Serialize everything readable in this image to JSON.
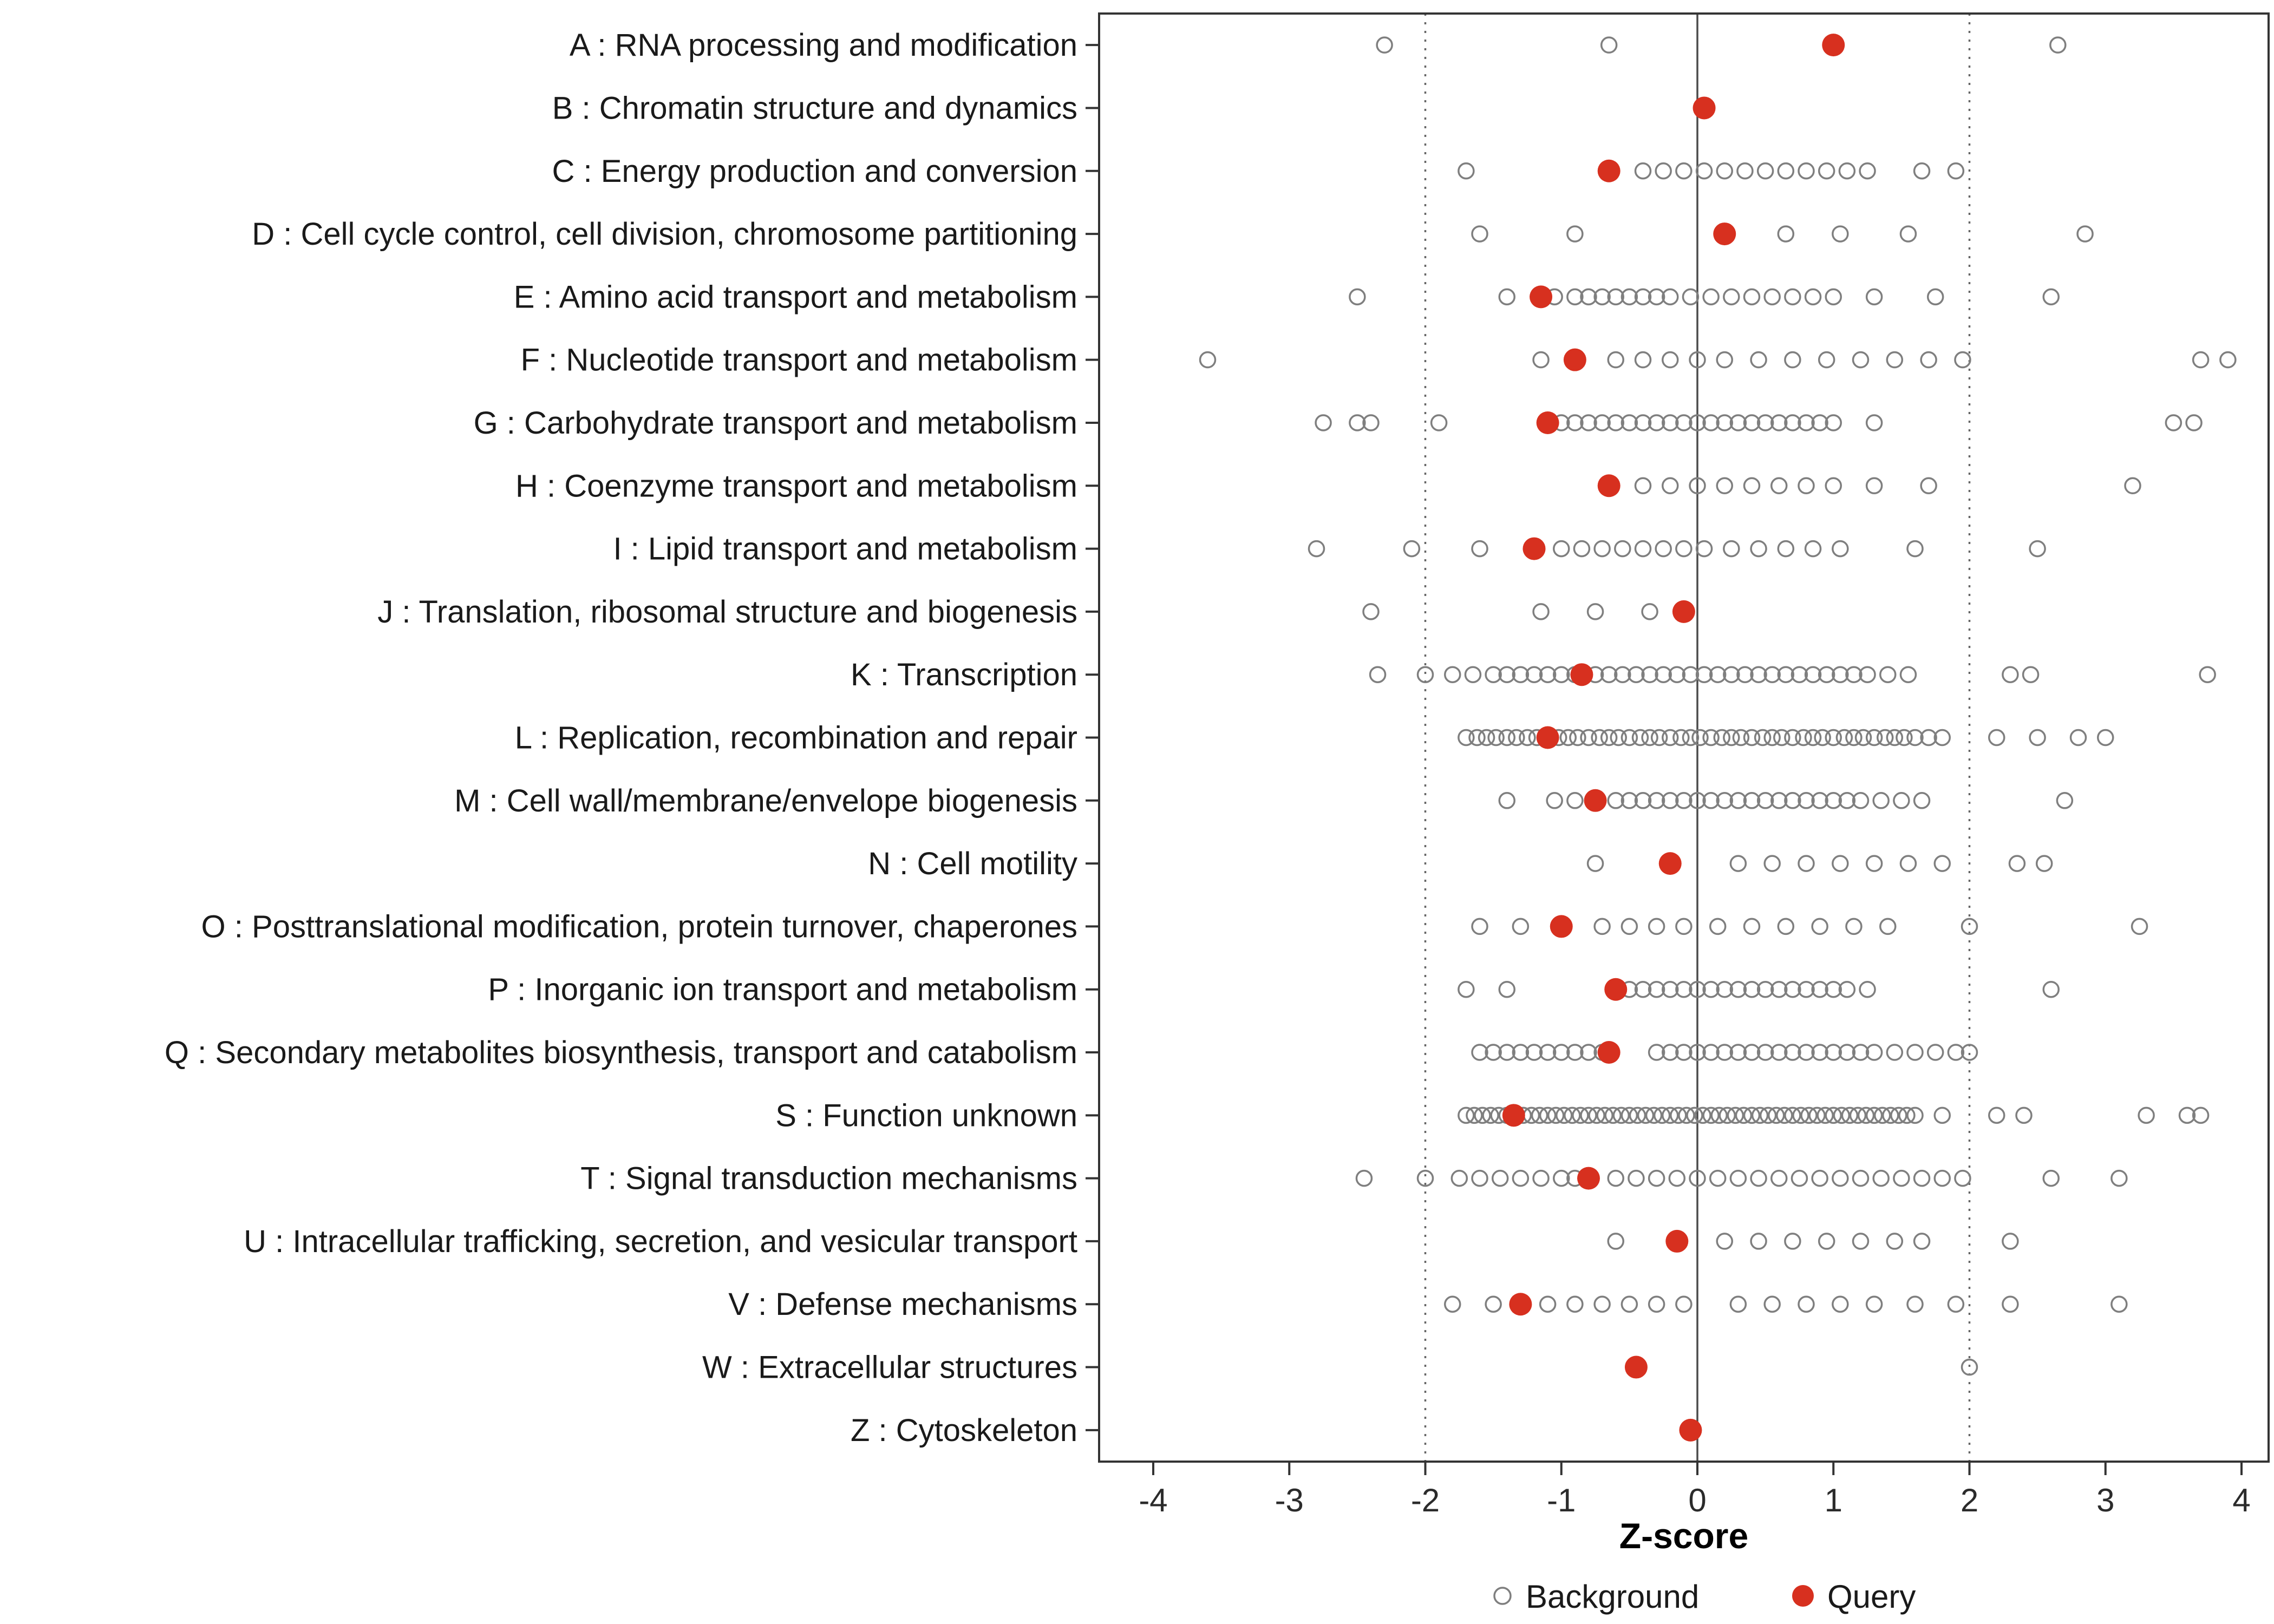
{
  "chart_data": {
    "type": "scatter",
    "title": "",
    "xlabel": "Z-score",
    "xlim": [
      -4.4,
      4.2
    ],
    "x_ticks": [
      -4,
      -3,
      -2,
      -1,
      0,
      1,
      2,
      3,
      4
    ],
    "reference_lines": {
      "solid": [
        0
      ],
      "dotted": [
        -2,
        2
      ]
    },
    "grid": false,
    "legend_position": "bottom",
    "colors": {
      "query": "#d7301f",
      "background": "#7f7f7f",
      "ref_dotted": "#666666",
      "ref_solid": "#4a4a4a",
      "axis": "#333333"
    },
    "legend": [
      {
        "label": "Background",
        "marker": "open-circle"
      },
      {
        "label": "Query",
        "marker": "filled-circle"
      }
    ],
    "categories": [
      {
        "label": "A : RNA processing and modification",
        "query": 1.0,
        "background": [
          -2.3,
          -0.65,
          2.65
        ]
      },
      {
        "label": "B : Chromatin structure and dynamics",
        "query": 0.05,
        "background": []
      },
      {
        "label": "C : Energy production and conversion",
        "query": -0.65,
        "background": [
          -1.7,
          -0.4,
          -0.25,
          -0.1,
          0.05,
          0.2,
          0.35,
          0.5,
          0.65,
          0.8,
          0.95,
          1.1,
          1.25,
          1.65,
          1.9
        ]
      },
      {
        "label": "D : Cell cycle control, cell division, chromosome partitioning",
        "query": 0.2,
        "background": [
          -1.6,
          -0.9,
          0.65,
          1.05,
          1.55,
          2.85
        ]
      },
      {
        "label": "E : Amino acid transport and metabolism",
        "query": -1.15,
        "background": [
          -2.5,
          -1.4,
          -1.05,
          -0.9,
          -0.8,
          -0.7,
          -0.6,
          -0.5,
          -0.4,
          -0.3,
          -0.2,
          -0.05,
          0.1,
          0.25,
          0.4,
          0.55,
          0.7,
          0.85,
          1.0,
          1.3,
          1.75,
          2.6
        ]
      },
      {
        "label": "F : Nucleotide transport and metabolism",
        "query": -0.9,
        "background": [
          -3.6,
          -1.15,
          -0.6,
          -0.4,
          -0.2,
          0.0,
          0.2,
          0.45,
          0.7,
          0.95,
          1.2,
          1.45,
          1.7,
          1.95,
          3.7,
          3.9
        ]
      },
      {
        "label": "G : Carbohydrate transport and metabolism",
        "query": -1.1,
        "background": [
          -2.75,
          -2.5,
          -2.4,
          -1.9,
          -1.0,
          -0.9,
          -0.8,
          -0.7,
          -0.6,
          -0.5,
          -0.4,
          -0.3,
          -0.2,
          -0.1,
          0.0,
          0.1,
          0.2,
          0.3,
          0.4,
          0.5,
          0.6,
          0.7,
          0.8,
          0.9,
          1.0,
          1.3,
          3.5,
          3.65
        ]
      },
      {
        "label": "H : Coenzyme transport and metabolism",
        "query": -0.65,
        "background": [
          -0.4,
          -0.2,
          0.0,
          0.2,
          0.4,
          0.6,
          0.8,
          1.0,
          1.3,
          1.7,
          3.2
        ]
      },
      {
        "label": "I : Lipid transport and metabolism",
        "query": -1.2,
        "background": [
          -2.8,
          -2.1,
          -1.6,
          -1.0,
          -0.85,
          -0.7,
          -0.55,
          -0.4,
          -0.25,
          -0.1,
          0.05,
          0.25,
          0.45,
          0.65,
          0.85,
          1.05,
          1.6,
          2.5
        ]
      },
      {
        "label": "J : Translation, ribosomal structure and biogenesis",
        "query": -0.1,
        "background": [
          -2.4,
          -1.15,
          -0.75,
          -0.35
        ]
      },
      {
        "label": "K : Transcription",
        "query": -0.85,
        "background": [
          -2.35,
          -2.0,
          -1.8,
          -1.65,
          -1.5,
          -1.4,
          -1.3,
          -1.2,
          -1.1,
          -1.0,
          -0.9,
          -0.75,
          -0.65,
          -0.55,
          -0.45,
          -0.35,
          -0.25,
          -0.15,
          -0.05,
          0.05,
          0.15,
          0.25,
          0.35,
          0.45,
          0.55,
          0.65,
          0.75,
          0.85,
          0.95,
          1.05,
          1.15,
          1.25,
          1.4,
          1.55,
          2.3,
          2.45,
          3.75
        ]
      },
      {
        "label": "L : Replication, recombination and repair",
        "query": -1.1,
        "background": [
          -1.7,
          -1.62,
          -1.55,
          -1.48,
          -1.4,
          -1.33,
          -1.25,
          -1.18,
          -1.1,
          -1.02,
          -0.95,
          -0.88,
          -0.8,
          -0.72,
          -0.65,
          -0.58,
          -0.5,
          -0.42,
          -0.35,
          -0.28,
          -0.2,
          -0.12,
          -0.05,
          0.02,
          0.1,
          0.18,
          0.25,
          0.32,
          0.4,
          0.48,
          0.55,
          0.62,
          0.7,
          0.78,
          0.85,
          0.92,
          1.0,
          1.08,
          1.15,
          1.22,
          1.3,
          1.38,
          1.45,
          1.52,
          1.6,
          1.7,
          1.8,
          2.2,
          2.5,
          2.8,
          3.0
        ]
      },
      {
        "label": "M : Cell wall/membrane/envelope biogenesis",
        "query": -0.75,
        "background": [
          -1.4,
          -1.05,
          -0.9,
          -0.6,
          -0.5,
          -0.4,
          -0.3,
          -0.2,
          -0.1,
          0.0,
          0.1,
          0.2,
          0.3,
          0.4,
          0.5,
          0.6,
          0.7,
          0.8,
          0.9,
          1.0,
          1.1,
          1.2,
          1.35,
          1.5,
          1.65,
          2.7
        ]
      },
      {
        "label": "N : Cell motility",
        "query": -0.2,
        "background": [
          -0.75,
          0.3,
          0.55,
          0.8,
          1.05,
          1.3,
          1.55,
          1.8,
          2.35,
          2.55
        ]
      },
      {
        "label": "O : Posttranslational modification, protein turnover, chaperones",
        "query": -1.0,
        "background": [
          -1.6,
          -1.3,
          -0.7,
          -0.5,
          -0.3,
          -0.1,
          0.15,
          0.4,
          0.65,
          0.9,
          1.15,
          1.4,
          2.0,
          3.25
        ]
      },
      {
        "label": "P : Inorganic ion transport and metabolism",
        "query": -0.6,
        "background": [
          -1.7,
          -1.4,
          -0.5,
          -0.4,
          -0.3,
          -0.2,
          -0.1,
          0.0,
          0.1,
          0.2,
          0.3,
          0.4,
          0.5,
          0.6,
          0.7,
          0.8,
          0.9,
          1.0,
          1.1,
          1.25,
          2.6
        ]
      },
      {
        "label": "Q : Secondary metabolites biosynthesis, transport and catabolism",
        "query": -0.65,
        "background": [
          -1.6,
          -1.5,
          -1.4,
          -1.3,
          -1.2,
          -1.1,
          -1.0,
          -0.9,
          -0.8,
          -0.7,
          -0.3,
          -0.2,
          -0.1,
          0.0,
          0.1,
          0.2,
          0.3,
          0.4,
          0.5,
          0.6,
          0.7,
          0.8,
          0.9,
          1.0,
          1.1,
          1.2,
          1.3,
          1.45,
          1.6,
          1.75,
          1.9,
          2.0
        ]
      },
      {
        "label": "S : Function unknown",
        "query": -1.35,
        "background": [
          -1.7,
          -1.64,
          -1.58,
          -1.52,
          -1.46,
          -1.4,
          -1.34,
          -1.28,
          -1.22,
          -1.16,
          -1.1,
          -1.04,
          -0.98,
          -0.92,
          -0.86,
          -0.8,
          -0.74,
          -0.68,
          -0.62,
          -0.56,
          -0.5,
          -0.44,
          -0.38,
          -0.32,
          -0.26,
          -0.2,
          -0.14,
          -0.08,
          -0.02,
          0.04,
          0.1,
          0.16,
          0.22,
          0.28,
          0.34,
          0.4,
          0.46,
          0.52,
          0.58,
          0.64,
          0.7,
          0.76,
          0.82,
          0.88,
          0.94,
          1.0,
          1.06,
          1.12,
          1.18,
          1.24,
          1.3,
          1.36,
          1.42,
          1.48,
          1.54,
          1.6,
          1.8,
          2.2,
          2.4,
          3.3,
          3.6,
          3.7
        ]
      },
      {
        "label": "T : Signal transduction mechanisms",
        "query": -0.8,
        "background": [
          -2.45,
          -2.0,
          -1.75,
          -1.6,
          -1.45,
          -1.3,
          -1.15,
          -1.0,
          -0.9,
          -0.6,
          -0.45,
          -0.3,
          -0.15,
          0.0,
          0.15,
          0.3,
          0.45,
          0.6,
          0.75,
          0.9,
          1.05,
          1.2,
          1.35,
          1.5,
          1.65,
          1.8,
          1.95,
          2.6,
          3.1
        ]
      },
      {
        "label": "U : Intracellular trafficking, secretion, and vesicular transport",
        "query": -0.15,
        "background": [
          -0.6,
          0.2,
          0.45,
          0.7,
          0.95,
          1.2,
          1.45,
          1.65,
          2.3
        ]
      },
      {
        "label": "V : Defense mechanisms",
        "query": -1.3,
        "background": [
          -1.8,
          -1.5,
          -1.1,
          -0.9,
          -0.7,
          -0.5,
          -0.3,
          -0.1,
          0.3,
          0.55,
          0.8,
          1.05,
          1.3,
          1.6,
          1.9,
          2.3,
          3.1
        ]
      },
      {
        "label": "W : Extracellular structures",
        "query": -0.45,
        "background": [
          2.0
        ]
      },
      {
        "label": "Z : Cytoskeleton",
        "query": -0.05,
        "background": []
      }
    ]
  }
}
